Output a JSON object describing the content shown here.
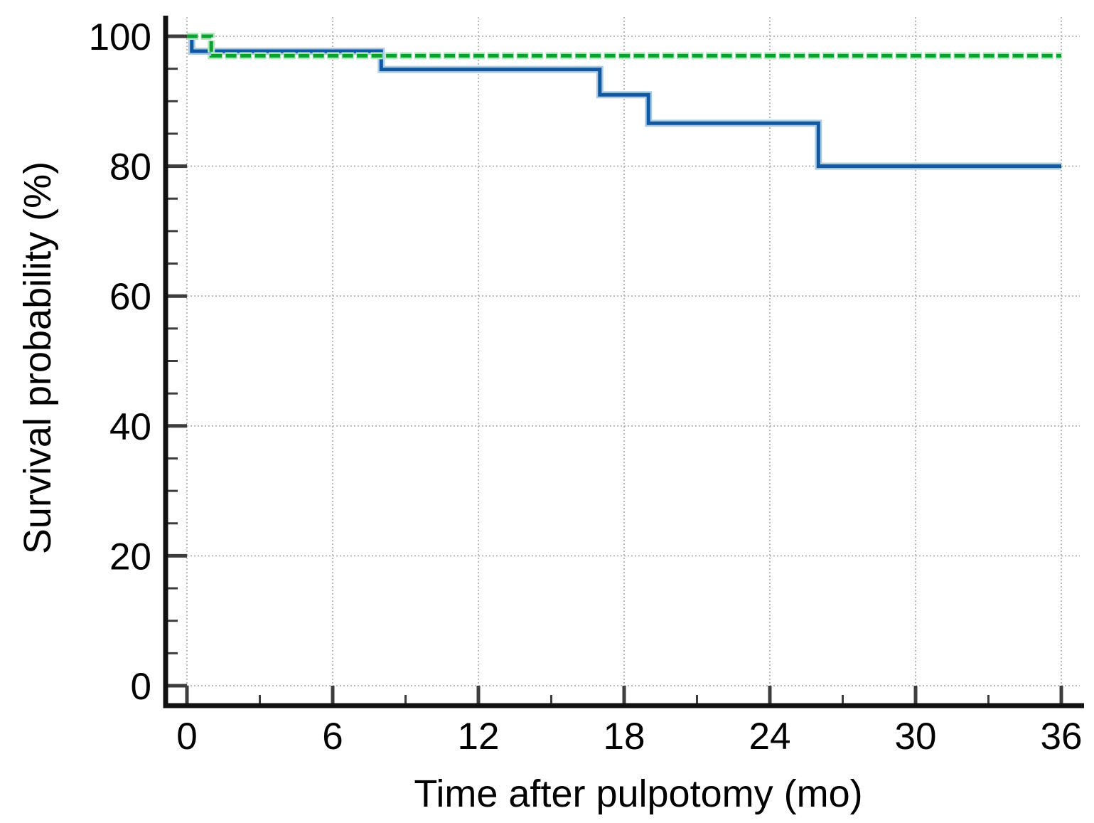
{
  "figure": {
    "background_color": "#ffffff",
    "title": "",
    "legend": "none"
  },
  "chart_data": {
    "type": "line",
    "subtype": "kaplan-meier-step-curves",
    "title": "",
    "xlabel": "Time after pulpotomy (mo)",
    "ylabel": "Survival probability (%)",
    "xlim": [
      0,
      36
    ],
    "ylim": [
      0,
      100
    ],
    "x_major_ticks": [
      0,
      6,
      12,
      18,
      24,
      30,
      36
    ],
    "x_minor_ticks": [
      3,
      9,
      15,
      21,
      27,
      33
    ],
    "y_major_ticks": [
      0,
      20,
      40,
      60,
      80,
      100
    ],
    "y_minor_ticks": [
      5,
      10,
      15,
      25,
      30,
      35,
      45,
      50,
      55,
      65,
      70,
      75,
      85,
      90,
      95
    ],
    "grid": "dotted gridlines at major ticks, both axes",
    "gridline_color": "#b3b3b3",
    "axis_color": "#111111",
    "tick_color": "#3d3d3d",
    "series": [
      {
        "name": "solid blue group",
        "line_style": "solid",
        "color": "#1158a3",
        "halo_color": "#a9cbe5",
        "points": [
          [
            0,
            100
          ],
          [
            0.2,
            100
          ],
          [
            0.2,
            97.7
          ],
          [
            8,
            97.7
          ],
          [
            8,
            94.9
          ],
          [
            17,
            94.9
          ],
          [
            17,
            91.0
          ],
          [
            19,
            91.0
          ],
          [
            19,
            86.6
          ],
          [
            26,
            86.6
          ],
          [
            26,
            80.0
          ],
          [
            36,
            80.0
          ]
        ],
        "event_times_mo": [
          0.2,
          8,
          17,
          19,
          26
        ],
        "survival_after_each_event_pct": [
          97.7,
          94.9,
          91.0,
          86.6,
          80.0
        ]
      },
      {
        "name": "dashed green group",
        "line_style": "dashed",
        "color": "#09a22e",
        "halo_color": "#b2e7c0",
        "points": [
          [
            0,
            100
          ],
          [
            1,
            100
          ],
          [
            1,
            97.0
          ],
          [
            36,
            97.0
          ]
        ],
        "event_times_mo": [
          1
        ],
        "survival_after_each_event_pct": [
          97.0
        ]
      }
    ]
  }
}
